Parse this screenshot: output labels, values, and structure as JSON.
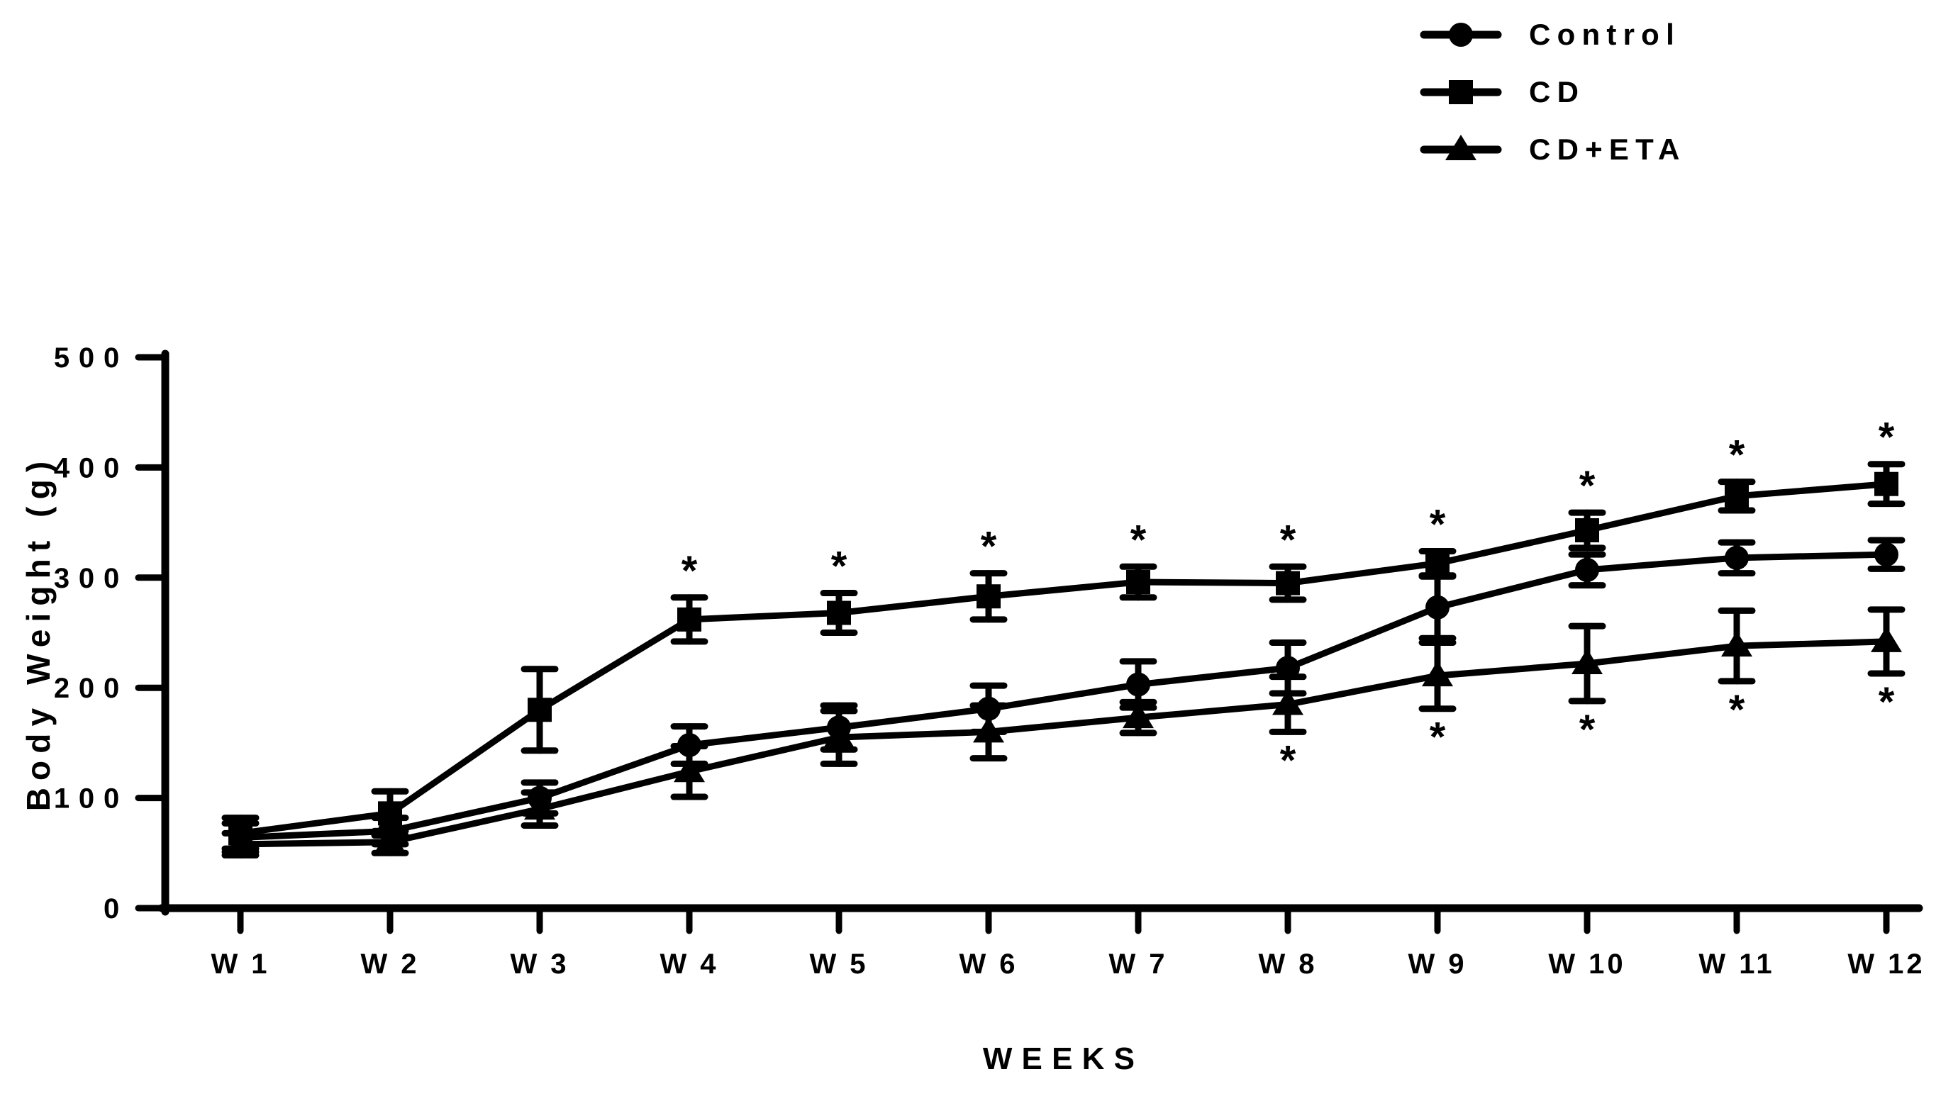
{
  "chart_data": {
    "type": "line",
    "title": "",
    "xlabel": "WEEKS",
    "ylabel": "Body Weight (g)",
    "x_tick_labels": [
      "W 1",
      "W 2",
      "W 3",
      "W 4",
      "W 5",
      "W 6",
      "W 7",
      "W 8",
      "W 9",
      "W 10",
      "W 11",
      "W 12"
    ],
    "y_ticks": [
      0,
      100,
      200,
      300,
      400,
      500
    ],
    "ylim": [
      0,
      500
    ],
    "grid": false,
    "legend_position": "top-right",
    "background_color": "#ffffff",
    "foreground_color": "#000000",
    "significance_symbol": "*",
    "series": [
      {
        "name": "Control",
        "marker": "circle",
        "significance_side": "none",
        "significant_weeks": [],
        "values": [
          64,
          70,
          100,
          148,
          164,
          181,
          203,
          218,
          273,
          307,
          318,
          321
        ],
        "errors": [
          13,
          12,
          14,
          17,
          20,
          21,
          21,
          23,
          28,
          14,
          14,
          13
        ]
      },
      {
        "name": "CD",
        "marker": "square",
        "significance_side": "above",
        "significant_weeks": [
          4,
          5,
          6,
          7,
          8,
          9,
          10,
          11,
          12
        ],
        "values": [
          68,
          86,
          180,
          262,
          268,
          283,
          296,
          295,
          313,
          343,
          374,
          385
        ],
        "errors": [
          14,
          20,
          37,
          20,
          18,
          21,
          14,
          15,
          11,
          16,
          13,
          18
        ]
      },
      {
        "name": "CD+ETA",
        "marker": "triangle",
        "significance_side": "below",
        "significant_weeks": [
          8,
          9,
          10,
          11,
          12
        ],
        "values": [
          58,
          60,
          90,
          124,
          155,
          160,
          173,
          185,
          211,
          222,
          238,
          242
        ],
        "errors": [
          10,
          10,
          15,
          23,
          24,
          24,
          14,
          25,
          30,
          34,
          32,
          29
        ]
      }
    ]
  }
}
